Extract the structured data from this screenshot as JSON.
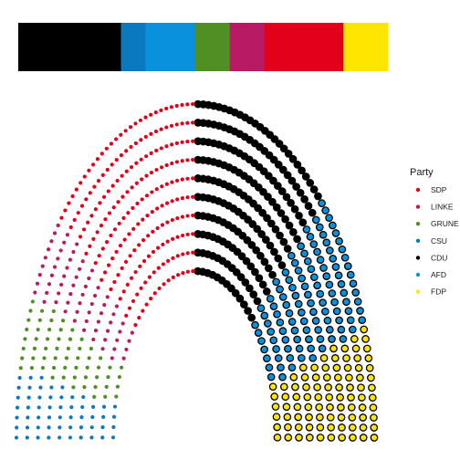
{
  "chart_data": {
    "type": "parliament",
    "title": "",
    "legend": {
      "title": "Party",
      "placement": "right",
      "entries": [
        {
          "name": "SDP",
          "color": "#E3001B"
        },
        {
          "name": "LINKE",
          "color": "#B81A63"
        },
        {
          "name": "GRUNE",
          "color": "#4F8F23"
        },
        {
          "name": "CSU",
          "color": "#0B79C0"
        },
        {
          "name": "CDU",
          "color": "#000000"
        },
        {
          "name": "AFD",
          "color": "#0A91DE"
        },
        {
          "name": "FDP",
          "color": "#FFE600"
        }
      ]
    },
    "bar": {
      "description": "seat share strip",
      "segments": [
        {
          "party": "CDU",
          "color": "#000000",
          "share": 0.26
        },
        {
          "party": "CSU",
          "color": "#0B79C0",
          "share": 0.0625
        },
        {
          "party": "AFD",
          "color": "#0A91DE",
          "share": 0.125
        },
        {
          "party": "GRUNE",
          "color": "#4F8F23",
          "share": 0.088
        },
        {
          "party": "LINKE",
          "color": "#B81A63",
          "share": 0.088
        },
        {
          "party": "SDP",
          "color": "#E3001B",
          "share": 0.2
        },
        {
          "party": "FDP",
          "color": "#FFE600",
          "share": 0.1125
        }
      ]
    },
    "hemicycle": {
      "rows": 10,
      "right_side_order": [
        "CDU",
        "AFD",
        "FDP"
      ],
      "left_side_order": [
        "SDP",
        "LINKE",
        "GRUNE",
        "CSU"
      ],
      "right_shares": [
        0.5,
        0.28,
        0.22
      ],
      "left_shares": [
        0.54,
        0.17,
        0.15,
        0.14
      ]
    }
  }
}
